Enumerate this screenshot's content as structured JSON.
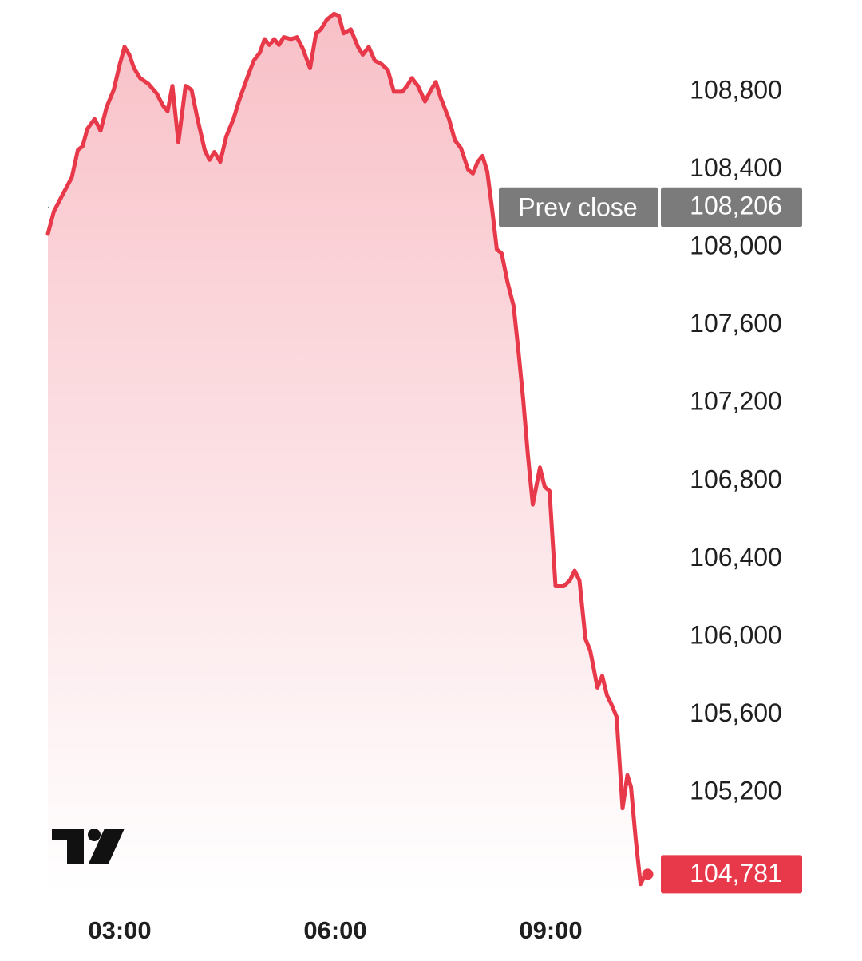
{
  "chart_data": {
    "type": "area",
    "color": "#e8394a",
    "x": [
      120,
      125,
      133,
      140,
      145,
      149,
      153,
      159,
      164,
      169,
      175,
      180,
      184,
      188,
      192,
      197,
      204,
      211,
      216,
      220,
      224,
      229,
      235,
      240,
      245,
      251,
      255,
      259,
      264,
      269,
      275,
      280,
      287,
      292,
      297,
      301,
      305,
      309,
      313,
      317,
      323,
      328,
      333,
      339,
      344,
      348,
      353,
      359,
      363,
      367,
      373,
      379,
      383,
      388,
      393,
      399,
      404,
      409,
      416,
      420,
      424,
      429,
      435,
      440,
      444,
      448,
      455,
      460,
      465,
      471,
      475,
      479,
      483,
      487,
      491,
      495,
      499,
      504,
      509,
      513,
      517,
      521,
      525,
      531,
      535,
      539,
      544,
      551,
      556,
      560,
      564,
      569,
      573,
      579,
      583,
      587,
      591,
      595,
      600,
      604,
      607,
      611,
      615,
      619
    ],
    "values": [
      108070,
      108185,
      108280,
      108360,
      108500,
      108520,
      108610,
      108660,
      108600,
      108720,
      108810,
      108940,
      109030,
      108990,
      108920,
      108870,
      108840,
      108790,
      108730,
      108700,
      108830,
      108540,
      108830,
      108810,
      108660,
      108500,
      108450,
      108490,
      108440,
      108570,
      108660,
      108760,
      108880,
      108960,
      109000,
      109070,
      109040,
      109070,
      109040,
      109080,
      109070,
      109080,
      109020,
      108920,
      109100,
      109120,
      109170,
      109200,
      109190,
      109100,
      109120,
      109030,
      108990,
      109030,
      108960,
      108940,
      108910,
      108800,
      108800,
      108830,
      108870,
      108830,
      108750,
      108810,
      108850,
      108770,
      108660,
      108550,
      108510,
      108400,
      108380,
      108440,
      108470,
      108390,
      108200,
      107990,
      107970,
      107820,
      107700,
      107470,
      107220,
      106930,
      106680,
      106870,
      106770,
      106750,
      106260,
      106260,
      106290,
      106340,
      106290,
      105990,
      105930,
      105740,
      105800,
      105700,
      105650,
      105590,
      105120,
      105290,
      105230,
      104960,
      104730,
      104781
    ],
    "value_labels": [
      null,
      null,
      null,
      null,
      null,
      null,
      null,
      null,
      null,
      null,
      null,
      null,
      null,
      null,
      null,
      null,
      null,
      null,
      null,
      null,
      null,
      null,
      null,
      null,
      null,
      null,
      null,
      null,
      null,
      null,
      null,
      null,
      null,
      null,
      null,
      null,
      null,
      null,
      null,
      null,
      null,
      null,
      null,
      null,
      null,
      null,
      null,
      null,
      null,
      null,
      null,
      null,
      null,
      null,
      null,
      null,
      null,
      null,
      null,
      null,
      null,
      null,
      null,
      null,
      null,
      null,
      null,
      null,
      null,
      null,
      null,
      null,
      null,
      null,
      null,
      null,
      null,
      null,
      null,
      null,
      null,
      null,
      null,
      null,
      null,
      null,
      null,
      null,
      null,
      null,
      null,
      null,
      null,
      null,
      null,
      null,
      null,
      null,
      null,
      null,
      null,
      null,
      null,
      "104,781"
    ],
    "xlim": [
      120,
      620
    ],
    "xticks": [
      {
        "value": 180,
        "label": "03:00"
      },
      {
        "value": 360,
        "label": "06:00"
      },
      {
        "value": 540,
        "label": "09:00"
      }
    ],
    "ylim": [
      104680,
      109230
    ],
    "yticks": [
      {
        "value": 108800,
        "label": "108,800"
      },
      {
        "value": 108400,
        "label": "108,400"
      },
      {
        "value": 108000,
        "label": "108,000"
      },
      {
        "value": 107600,
        "label": "107,600"
      },
      {
        "value": 107200,
        "label": "107,200"
      },
      {
        "value": 106800,
        "label": "106,800"
      },
      {
        "value": 106400,
        "label": "106,400"
      },
      {
        "value": 106000,
        "label": "106,000"
      },
      {
        "value": 105600,
        "label": "105,600"
      },
      {
        "value": 105200,
        "label": "105,200"
      }
    ],
    "prev_close": {
      "label": "Prev close",
      "value": 108206,
      "value_label": "108,206"
    }
  }
}
